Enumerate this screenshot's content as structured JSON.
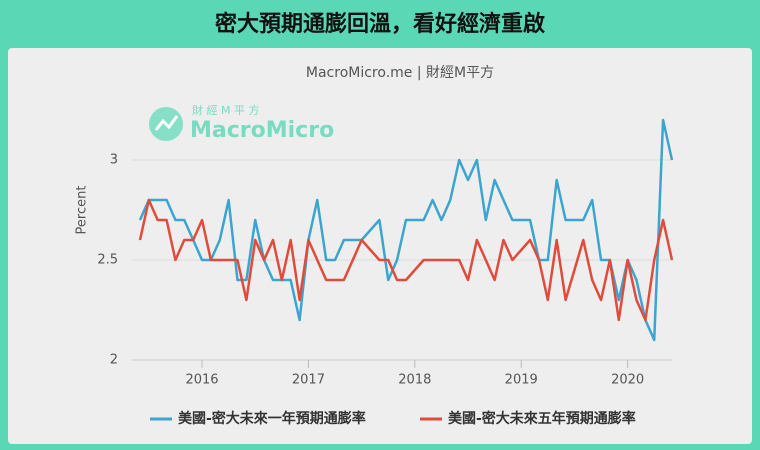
{
  "chart_data": {
    "type": "line",
    "title": "密大預期通膨回溫，看好經濟重啟",
    "subtitle": "MacroMicro.me | 財經M平方",
    "watermark": {
      "top": "財 經 M 平 方",
      "brand": "MacroMicro"
    },
    "y_label": "Percent",
    "x": [
      2015.417,
      2015.5,
      2015.583,
      2015.667,
      2015.75,
      2015.833,
      2015.917,
      2016.0,
      2016.083,
      2016.167,
      2016.25,
      2016.333,
      2016.417,
      2016.5,
      2016.583,
      2016.667,
      2016.75,
      2016.833,
      2016.917,
      2017.0,
      2017.083,
      2017.167,
      2017.25,
      2017.333,
      2017.417,
      2017.5,
      2017.583,
      2017.667,
      2017.75,
      2017.833,
      2017.917,
      2018.0,
      2018.083,
      2018.167,
      2018.25,
      2018.333,
      2018.417,
      2018.5,
      2018.583,
      2018.667,
      2018.75,
      2018.833,
      2018.917,
      2019.0,
      2019.083,
      2019.167,
      2019.25,
      2019.333,
      2019.417,
      2019.5,
      2019.583,
      2019.667,
      2019.75,
      2019.833,
      2019.917,
      2020.0,
      2020.083,
      2020.167,
      2020.25,
      2020.333,
      2020.417
    ],
    "series": [
      {
        "name": "美國-密大未來一年預期通膨率",
        "color": "#3ba5cf",
        "values": [
          2.7,
          2.8,
          2.8,
          2.8,
          2.7,
          2.7,
          2.6,
          2.5,
          2.5,
          2.6,
          2.8,
          2.4,
          2.4,
          2.7,
          2.5,
          2.4,
          2.4,
          2.4,
          2.2,
          2.6,
          2.8,
          2.5,
          2.5,
          2.6,
          2.6,
          2.6,
          2.65,
          2.7,
          2.4,
          2.5,
          2.7,
          2.7,
          2.7,
          2.8,
          2.7,
          2.8,
          3.0,
          2.9,
          3.0,
          2.7,
          2.9,
          2.8,
          2.7,
          2.7,
          2.7,
          2.5,
          2.5,
          2.9,
          2.7,
          2.7,
          2.7,
          2.8,
          2.5,
          2.5,
          2.3,
          2.5,
          2.4,
          2.2,
          2.1,
          3.2,
          3.0
        ]
      },
      {
        "name": "美國-密大未來五年預期通膨率",
        "color": "#e04b3c",
        "values": [
          2.6,
          2.8,
          2.7,
          2.7,
          2.5,
          2.6,
          2.6,
          2.7,
          2.5,
          2.5,
          2.5,
          2.5,
          2.3,
          2.6,
          2.5,
          2.6,
          2.4,
          2.6,
          2.3,
          2.6,
          2.5,
          2.4,
          2.4,
          2.4,
          2.5,
          2.6,
          2.55,
          2.5,
          2.5,
          2.4,
          2.4,
          2.45,
          2.5,
          2.5,
          2.5,
          2.5,
          2.5,
          2.4,
          2.6,
          2.5,
          2.4,
          2.6,
          2.5,
          2.55,
          2.6,
          2.5,
          2.3,
          2.6,
          2.3,
          2.45,
          2.6,
          2.4,
          2.3,
          2.5,
          2.2,
          2.5,
          2.3,
          2.2,
          2.5,
          2.7,
          2.5
        ]
      }
    ],
    "xlim": [
      2015.417,
      2020.417
    ],
    "xticks": [
      2016,
      2017,
      2018,
      2019,
      2020
    ],
    "ylim": [
      2,
      3.5
    ],
    "yticks": [
      2,
      2.5,
      3
    ],
    "grid": true,
    "legend": "bottom"
  }
}
